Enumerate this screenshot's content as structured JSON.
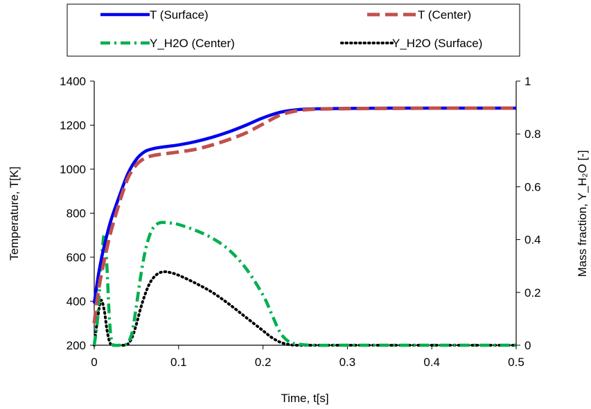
{
  "chart_data": {
    "type": "line",
    "xlabel": "Time, t[s]",
    "ylabel_left": "Temperature, T[K]",
    "ylabel_right": "Mass fraction, Y_H₂O [-]",
    "xlim": [
      0,
      0.5
    ],
    "ylim_left": [
      200,
      1400
    ],
    "ylim_right": [
      0,
      1
    ],
    "x_ticks": [
      "0",
      "0.1",
      "0.2",
      "0.3",
      "0.4",
      "0.5"
    ],
    "y_left_ticks": [
      "200",
      "400",
      "600",
      "800",
      "1000",
      "1200",
      "1400"
    ],
    "y_right_ticks": [
      "0",
      "0.2",
      "0.4",
      "0.6",
      "0.8",
      "1"
    ],
    "grid": false,
    "legend_position": "top",
    "series": [
      {
        "name": "T (Surface)",
        "axis": "left",
        "color": "#0000ee",
        "style": "solid",
        "x": [
          0,
          0.005,
          0.01,
          0.015,
          0.02,
          0.03,
          0.04,
          0.05,
          0.06,
          0.07,
          0.08,
          0.1,
          0.12,
          0.14,
          0.16,
          0.18,
          0.2,
          0.22,
          0.24,
          0.26,
          0.3,
          0.35,
          0.4,
          0.45,
          0.5
        ],
        "y": [
          390,
          520,
          620,
          700,
          770,
          880,
          980,
          1045,
          1080,
          1093,
          1100,
          1110,
          1125,
          1145,
          1170,
          1200,
          1233,
          1258,
          1270,
          1274,
          1276,
          1277,
          1277,
          1277,
          1277
        ]
      },
      {
        "name": "T (Center)",
        "axis": "left",
        "color": "#c0504d",
        "style": "dashed",
        "x": [
          0,
          0.005,
          0.01,
          0.015,
          0.02,
          0.03,
          0.04,
          0.05,
          0.06,
          0.07,
          0.08,
          0.1,
          0.12,
          0.14,
          0.16,
          0.18,
          0.2,
          0.22,
          0.24,
          0.26,
          0.3,
          0.35,
          0.4,
          0.45,
          0.5
        ],
        "y": [
          300,
          450,
          550,
          640,
          720,
          850,
          960,
          1020,
          1050,
          1062,
          1068,
          1078,
          1090,
          1110,
          1135,
          1165,
          1205,
          1245,
          1265,
          1272,
          1275,
          1276,
          1277,
          1277,
          1277
        ]
      },
      {
        "name": "Y_H2O (Center)",
        "axis": "right",
        "color": "#00b050",
        "style": "dashdot",
        "x": [
          0,
          0.004,
          0.008,
          0.012,
          0.015,
          0.018,
          0.021,
          0.025,
          0.03,
          0.035,
          0.04,
          0.045,
          0.05,
          0.055,
          0.06,
          0.065,
          0.07,
          0.075,
          0.08,
          0.09,
          0.1,
          0.12,
          0.14,
          0.16,
          0.18,
          0.2,
          0.21,
          0.22,
          0.23,
          0.24,
          0.26,
          0.3,
          0.4,
          0.5
        ],
        "y": [
          0,
          0.1,
          0.3,
          0.42,
          0.3,
          0.1,
          0.01,
          0,
          0,
          0,
          0.01,
          0.05,
          0.15,
          0.26,
          0.35,
          0.41,
          0.445,
          0.46,
          0.465,
          0.463,
          0.457,
          0.435,
          0.405,
          0.36,
          0.29,
          0.19,
          0.12,
          0.05,
          0.015,
          0.005,
          0,
          0,
          0,
          0
        ]
      },
      {
        "name": "Y_H2O (Surface)",
        "axis": "right",
        "color": "#000000",
        "style": "dotted",
        "x": [
          0,
          0.004,
          0.008,
          0.012,
          0.015,
          0.018,
          0.021,
          0.025,
          0.03,
          0.035,
          0.04,
          0.045,
          0.05,
          0.055,
          0.06,
          0.065,
          0.07,
          0.075,
          0.08,
          0.085,
          0.09,
          0.1,
          0.12,
          0.14,
          0.16,
          0.18,
          0.2,
          0.21,
          0.22,
          0.23,
          0.24,
          0.26,
          0.3,
          0.4,
          0.5
        ],
        "y": [
          0,
          0.1,
          0.17,
          0.13,
          0.06,
          0.015,
          0,
          0,
          0,
          0,
          0.005,
          0.03,
          0.08,
          0.14,
          0.19,
          0.23,
          0.255,
          0.27,
          0.277,
          0.278,
          0.275,
          0.265,
          0.235,
          0.2,
          0.155,
          0.105,
          0.055,
          0.03,
          0.012,
          0.003,
          0,
          0,
          0,
          0,
          0
        ]
      }
    ]
  }
}
